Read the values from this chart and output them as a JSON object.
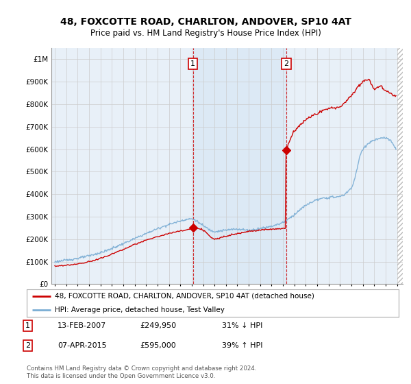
{
  "title": "48, FOXCOTTE ROAD, CHARLTON, ANDOVER, SP10 4AT",
  "subtitle": "Price paid vs. HM Land Registry's House Price Index (HPI)",
  "legend_entry1": "48, FOXCOTTE ROAD, CHARLTON, ANDOVER, SP10 4AT (detached house)",
  "legend_entry2": "HPI: Average price, detached house, Test Valley",
  "annotation1_date": "13-FEB-2007",
  "annotation1_price": "£249,950",
  "annotation1_hpi": "31% ↓ HPI",
  "annotation2_date": "07-APR-2015",
  "annotation2_price": "£595,000",
  "annotation2_hpi": "39% ↑ HPI",
  "footnote": "Contains HM Land Registry data © Crown copyright and database right 2024.\nThis data is licensed under the Open Government Licence v3.0.",
  "sale1_x": 2007.1,
  "sale1_y": 249950,
  "sale2_x": 2015.27,
  "sale2_y": 595000,
  "red_color": "#cc0000",
  "blue_color": "#7aadd4",
  "shade_color": "#dce9f5",
  "bg_color": "#e8f0f8",
  "plot_bg": "#ffffff",
  "grid_color": "#cccccc",
  "ylim": [
    0,
    1050000
  ],
  "xlim_start": 1994.7,
  "xlim_end": 2025.5
}
